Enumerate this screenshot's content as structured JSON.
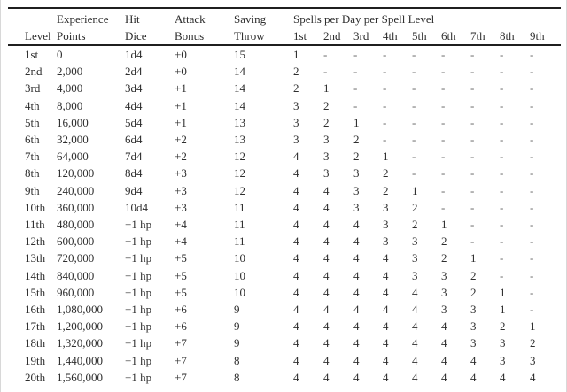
{
  "table": {
    "spells_group_header": "Spells per Day per Spell Level",
    "col_headers": {
      "level": [
        "",
        "Level"
      ],
      "xp": [
        "Experience",
        "Points"
      ],
      "hit_dice": [
        "Hit",
        "Dice"
      ],
      "attack_bonus": [
        "Attack",
        "Bonus"
      ],
      "saving_throw": [
        "Saving",
        "Throw"
      ]
    },
    "spell_level_headers": [
      "1st",
      "2nd",
      "3rd",
      "4th",
      "5th",
      "6th",
      "7th",
      "8th",
      "9th"
    ],
    "rows": [
      {
        "level": "1st",
        "xp": "0",
        "hit_dice": "1d4",
        "attack_bonus": "+0",
        "saving_throw": "15",
        "spells": [
          "1",
          "-",
          "-",
          "-",
          "-",
          "-",
          "-",
          "-",
          "-"
        ]
      },
      {
        "level": "2nd",
        "xp": "2,000",
        "hit_dice": "2d4",
        "attack_bonus": "+0",
        "saving_throw": "14",
        "spells": [
          "2",
          "-",
          "-",
          "-",
          "-",
          "-",
          "-",
          "-",
          "-"
        ]
      },
      {
        "level": "3rd",
        "xp": "4,000",
        "hit_dice": "3d4",
        "attack_bonus": "+1",
        "saving_throw": "14",
        "spells": [
          "2",
          "1",
          "-",
          "-",
          "-",
          "-",
          "-",
          "-",
          "-"
        ]
      },
      {
        "level": "4th",
        "xp": "8,000",
        "hit_dice": "4d4",
        "attack_bonus": "+1",
        "saving_throw": "14",
        "spells": [
          "3",
          "2",
          "-",
          "-",
          "-",
          "-",
          "-",
          "-",
          "-"
        ]
      },
      {
        "level": "5th",
        "xp": "16,000",
        "hit_dice": "5d4",
        "attack_bonus": "+1",
        "saving_throw": "13",
        "spells": [
          "3",
          "2",
          "1",
          "-",
          "-",
          "-",
          "-",
          "-",
          "-"
        ]
      },
      {
        "level": "6th",
        "xp": "32,000",
        "hit_dice": "6d4",
        "attack_bonus": "+2",
        "saving_throw": "13",
        "spells": [
          "3",
          "3",
          "2",
          "-",
          "-",
          "-",
          "-",
          "-",
          "-"
        ]
      },
      {
        "level": "7th",
        "xp": "64,000",
        "hit_dice": "7d4",
        "attack_bonus": "+2",
        "saving_throw": "12",
        "spells": [
          "4",
          "3",
          "2",
          "1",
          "-",
          "-",
          "-",
          "-",
          "-"
        ]
      },
      {
        "level": "8th",
        "xp": "120,000",
        "hit_dice": "8d4",
        "attack_bonus": "+3",
        "saving_throw": "12",
        "spells": [
          "4",
          "3",
          "3",
          "2",
          "-",
          "-",
          "-",
          "-",
          "-"
        ]
      },
      {
        "level": "9th",
        "xp": "240,000",
        "hit_dice": "9d4",
        "attack_bonus": "+3",
        "saving_throw": "12",
        "spells": [
          "4",
          "4",
          "3",
          "2",
          "1",
          "-",
          "-",
          "-",
          "-"
        ]
      },
      {
        "level": "10th",
        "xp": "360,000",
        "hit_dice": "10d4",
        "attack_bonus": "+3",
        "saving_throw": "11",
        "spells": [
          "4",
          "4",
          "3",
          "3",
          "2",
          "-",
          "-",
          "-",
          "-"
        ]
      },
      {
        "level": "11th",
        "xp": "480,000",
        "hit_dice": "+1 hp",
        "attack_bonus": "+4",
        "saving_throw": "11",
        "spells": [
          "4",
          "4",
          "4",
          "3",
          "2",
          "1",
          "-",
          "-",
          "-"
        ]
      },
      {
        "level": "12th",
        "xp": "600,000",
        "hit_dice": "+1 hp",
        "attack_bonus": "+4",
        "saving_throw": "11",
        "spells": [
          "4",
          "4",
          "4",
          "3",
          "3",
          "2",
          "-",
          "-",
          "-"
        ]
      },
      {
        "level": "13th",
        "xp": "720,000",
        "hit_dice": "+1 hp",
        "attack_bonus": "+5",
        "saving_throw": "10",
        "spells": [
          "4",
          "4",
          "4",
          "4",
          "3",
          "2",
          "1",
          "-",
          "-"
        ]
      },
      {
        "level": "14th",
        "xp": "840,000",
        "hit_dice": "+1 hp",
        "attack_bonus": "+5",
        "saving_throw": "10",
        "spells": [
          "4",
          "4",
          "4",
          "4",
          "3",
          "3",
          "2",
          "-",
          "-"
        ]
      },
      {
        "level": "15th",
        "xp": "960,000",
        "hit_dice": "+1 hp",
        "attack_bonus": "+5",
        "saving_throw": "10",
        "spells": [
          "4",
          "4",
          "4",
          "4",
          "4",
          "3",
          "2",
          "1",
          "-"
        ]
      },
      {
        "level": "16th",
        "xp": "1,080,000",
        "hit_dice": "+1 hp",
        "attack_bonus": "+6",
        "saving_throw": "9",
        "spells": [
          "4",
          "4",
          "4",
          "4",
          "4",
          "3",
          "3",
          "1",
          "-"
        ]
      },
      {
        "level": "17th",
        "xp": "1,200,000",
        "hit_dice": "+1 hp",
        "attack_bonus": "+6",
        "saving_throw": "9",
        "spells": [
          "4",
          "4",
          "4",
          "4",
          "4",
          "4",
          "3",
          "2",
          "1"
        ]
      },
      {
        "level": "18th",
        "xp": "1,320,000",
        "hit_dice": "+1 hp",
        "attack_bonus": "+7",
        "saving_throw": "9",
        "spells": [
          "4",
          "4",
          "4",
          "4",
          "4",
          "4",
          "3",
          "3",
          "2"
        ]
      },
      {
        "level": "19th",
        "xp": "1,440,000",
        "hit_dice": "+1 hp",
        "attack_bonus": "+7",
        "saving_throw": "8",
        "spells": [
          "4",
          "4",
          "4",
          "4",
          "4",
          "4",
          "4",
          "3",
          "3"
        ]
      },
      {
        "level": "20th",
        "xp": "1,560,000",
        "hit_dice": "+1 hp",
        "attack_bonus": "+7",
        "saving_throw": "8",
        "spells": [
          "4",
          "4",
          "4",
          "4",
          "4",
          "4",
          "4",
          "4",
          "4"
        ]
      }
    ],
    "colors": {
      "text": "#2e2e2e",
      "rule": "#1f1f1f",
      "dash": "#666666",
      "edge_border": "#d8d8d8",
      "background": "#ffffff"
    }
  }
}
